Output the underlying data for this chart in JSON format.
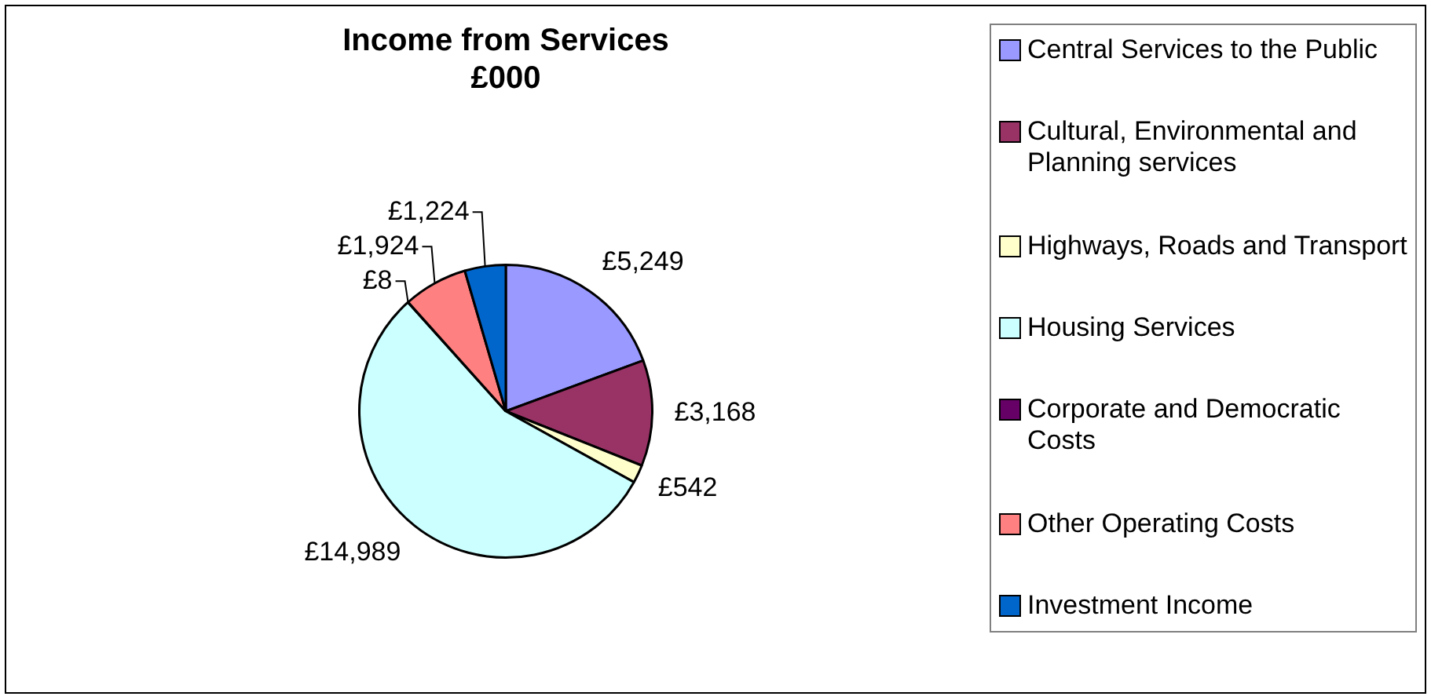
{
  "chart_data": {
    "type": "pie",
    "title": "Income from Services £000",
    "categories": [
      "Central Services to the Public",
      "Cultural, Environmental and Planning services",
      "Highways, Roads and Transport",
      "Housing Services",
      "Corporate and Democratic Costs",
      "Other Operating Costs",
      "Investment Income"
    ],
    "values": [
      5249,
      3168,
      542,
      14989,
      8,
      1924,
      1224
    ],
    "colors": [
      "#9999ff",
      "#993366",
      "#ffffcc",
      "#ccffff",
      "#660066",
      "#ff8080",
      "#0066cc"
    ],
    "value_labels": [
      "£5,249",
      "£3,168",
      "£542",
      "£14,989",
      "£8",
      "£1,924",
      "£1,224"
    ],
    "legend": "right"
  }
}
